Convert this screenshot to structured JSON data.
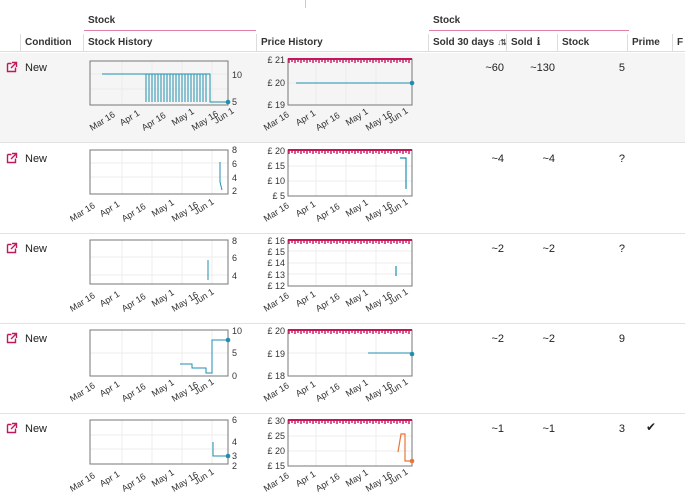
{
  "groups": [
    {
      "label": "Stock"
    },
    {
      "label": "Stock"
    }
  ],
  "columns": {
    "condition": "Condition",
    "stock_history": "Stock History",
    "price_history": "Price History",
    "sold_30": "Sold 30 days",
    "sold": "Sold",
    "stock": "Stock",
    "prime": "Prime",
    "truncated": "F"
  },
  "rows": [
    {
      "condition": "New",
      "sold_30": "~60",
      "sold": "~130",
      "stock": "5",
      "prime": "",
      "stock_chart": {
        "yticks": [
          "10",
          "5"
        ],
        "xticks": [
          "Mar 16",
          "Apr 1",
          "Apr 16",
          "May 1",
          "May 16",
          "Jun 1"
        ]
      },
      "price_chart": {
        "yticks": [
          "£ 21",
          "£ 20",
          "£ 19"
        ],
        "xticks": [
          "Mar 16",
          "Apr 1",
          "Apr 16",
          "May 1",
          "May 16",
          "Jun 1"
        ]
      }
    },
    {
      "condition": "New",
      "sold_30": "~4",
      "sold": "~4",
      "stock": "?",
      "prime": "",
      "stock_chart": {
        "yticks": [
          "8",
          "6",
          "4",
          "2"
        ],
        "xticks": [
          "Mar 16",
          "Apr 1",
          "Apr 16",
          "May 1",
          "May 16",
          "Jun 1"
        ]
      },
      "price_chart": {
        "yticks": [
          "£ 20",
          "£ 15",
          "£ 10",
          "£ 5"
        ],
        "xticks": [
          "Mar 16",
          "Apr 1",
          "Apr 16",
          "May 1",
          "May 16",
          "Jun 1"
        ]
      }
    },
    {
      "condition": "New",
      "sold_30": "~2",
      "sold": "~2",
      "stock": "?",
      "prime": "",
      "stock_chart": {
        "yticks": [
          "8",
          "6",
          "4"
        ],
        "xticks": [
          "Mar 16",
          "Apr 1",
          "Apr 16",
          "May 1",
          "May 16",
          "Jun 1"
        ]
      },
      "price_chart": {
        "yticks": [
          "£ 16",
          "£ 15",
          "£ 14",
          "£ 13",
          "£ 12"
        ],
        "xticks": [
          "Mar 16",
          "Apr 1",
          "Apr 16",
          "May 1",
          "May 16",
          "Jun 1"
        ]
      }
    },
    {
      "condition": "New",
      "sold_30": "~2",
      "sold": "~2",
      "stock": "9",
      "prime": "",
      "stock_chart": {
        "yticks": [
          "10",
          "5",
          "0"
        ],
        "xticks": [
          "Mar 16",
          "Apr 1",
          "Apr 16",
          "May 1",
          "May 16",
          "Jun 1"
        ]
      },
      "price_chart": {
        "yticks": [
          "£ 20",
          "£ 19",
          "£ 18"
        ],
        "xticks": [
          "Mar 16",
          "Apr 1",
          "Apr 16",
          "May 1",
          "May 16",
          "Jun 1"
        ]
      }
    },
    {
      "condition": "New",
      "sold_30": "~1",
      "sold": "~1",
      "stock": "3",
      "prime": "✔",
      "stock_chart": {
        "yticks": [
          "6",
          "4",
          "3",
          "2"
        ],
        "xticks": [
          "Mar 16",
          "Apr 1",
          "Apr 16",
          "May 1",
          "May 16",
          "Jun 1"
        ]
      },
      "price_chart": {
        "yticks": [
          "£ 30",
          "£ 25",
          "£ 20",
          "£ 15"
        ],
        "xticks": [
          "Mar 16",
          "Apr 1",
          "Apr 16",
          "May 1",
          "May 16",
          "Jun 1"
        ]
      }
    }
  ],
  "colors": {
    "accent": "#c2185b",
    "stock_line": "#1f8fb0",
    "price_line": "#1f8fb0",
    "price_line_alt": "#e8763a"
  },
  "icons": {
    "row_link": "external-link-icon",
    "prime": "checkmark-icon"
  }
}
